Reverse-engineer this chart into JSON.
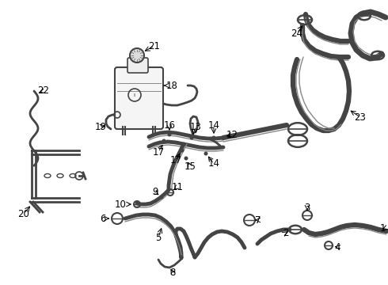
{
  "bg_color": "#ffffff",
  "line_color": "#444444",
  "lw_thick": 3.5,
  "lw_med": 2.0,
  "lw_thin": 1.0,
  "label_fontsize": 8.5
}
